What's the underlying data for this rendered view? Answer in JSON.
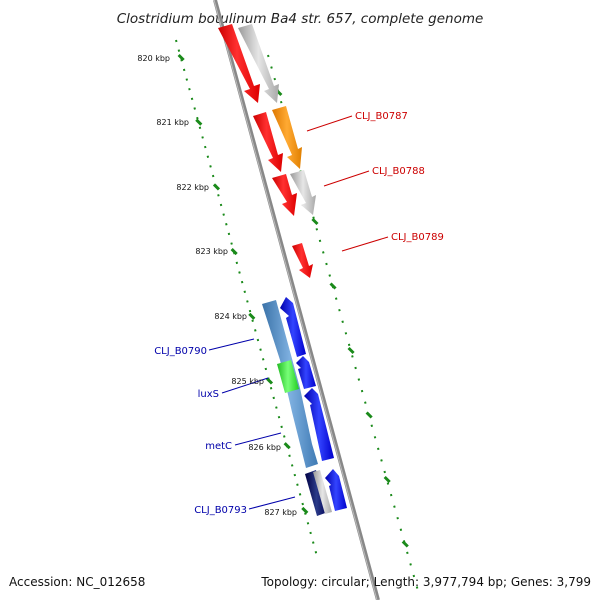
{
  "title": "Clostridium botulinum Ba4 str. 657, complete genome",
  "footer": {
    "accession": "Accession: NC_012658",
    "topology": "Topology: circular; Length: 3,977,794 bp; Genes: 3,799"
  },
  "ticks": [
    "820 kbp",
    "821 kbp",
    "822 kbp",
    "823 kbp",
    "824 kbp",
    "825 kbp",
    "826 kbp",
    "827 kbp"
  ],
  "gene_labels": [
    {
      "name": "CLJ_B0787",
      "side": "right",
      "color": "#cc0000"
    },
    {
      "name": "CLJ_B0788",
      "side": "right",
      "color": "#cc0000"
    },
    {
      "name": "CLJ_B0789",
      "side": "right",
      "color": "#cc0000"
    },
    {
      "name": "CLJ_B0790",
      "side": "left",
      "color": "#0000aa"
    },
    {
      "name": "luxS",
      "side": "left",
      "color": "#0000aa"
    },
    {
      "name": "metC",
      "side": "left",
      "color": "#0000aa"
    },
    {
      "name": "CLJ_B0793",
      "side": "left",
      "color": "#0000aa"
    }
  ],
  "colors": {
    "backbone": "#888888",
    "tick": "#1a8a1a",
    "cds_red": "#ff0000",
    "cds_grey": "#bbbbbb",
    "cds_orange": "#ff8c00",
    "cds_blue": "#0000ee",
    "cds_steel": "#4a8ac4",
    "cds_green": "#33dd33",
    "cds_navy": "#000066"
  }
}
